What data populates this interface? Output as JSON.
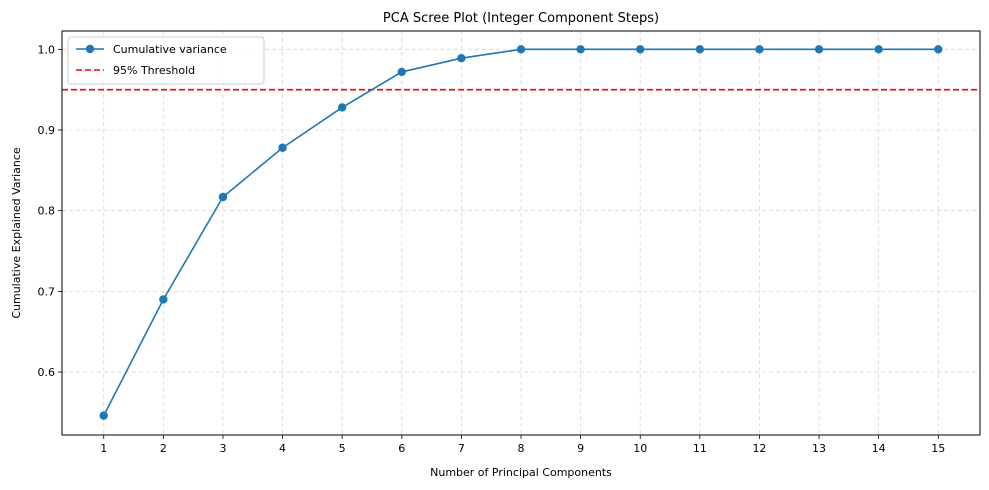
{
  "chart_data": {
    "type": "line",
    "title": "PCA Scree Plot (Integer Component Steps)",
    "xlabel": "Number of Principal Components",
    "ylabel": "Cumulative Explained Variance",
    "x": [
      1,
      2,
      3,
      4,
      5,
      6,
      7,
      8,
      9,
      10,
      11,
      12,
      13,
      14,
      15
    ],
    "xlim": [
      0.3,
      15.7
    ],
    "ylim": [
      0.522,
      1.0227
    ],
    "xticks": [
      1,
      2,
      3,
      4,
      5,
      6,
      7,
      8,
      9,
      10,
      11,
      12,
      13,
      14,
      15
    ],
    "yticks": [
      0.6,
      0.7,
      0.8,
      0.9,
      1.0
    ],
    "ytick_labels": [
      "0.6",
      "0.7",
      "0.8",
      "0.9",
      "1.0"
    ],
    "grid": true,
    "grid_style": "dashed",
    "legend_position": "top-left",
    "series": [
      {
        "name": "Cumulative variance",
        "color": "#1f77b4",
        "marker": "circle",
        "values": [
          0.546,
          0.69,
          0.817,
          0.878,
          0.928,
          0.972,
          0.989,
          1.0,
          1.0,
          1.0,
          1.0,
          1.0,
          1.0,
          1.0,
          1.0
        ]
      }
    ],
    "reference_lines": [
      {
        "name": "95% Threshold",
        "y": 0.95,
        "color": "#ff0000",
        "style": "dashed"
      }
    ]
  }
}
